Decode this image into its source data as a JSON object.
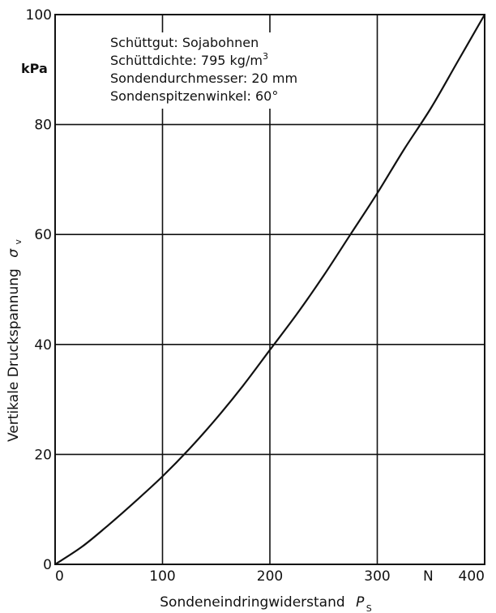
{
  "chart_data": {
    "type": "line",
    "title": "",
    "xlabel": "Sondeneindringwiderstand",
    "xlabel_symbol": "P",
    "xlabel_symbol_sub": "S",
    "x_unit": "N",
    "ylabel": "Vertikale Druckspannung",
    "ylabel_symbol": "σ",
    "ylabel_symbol_sub": "v",
    "y_unit": "kPa",
    "xlim": [
      0,
      400
    ],
    "ylim": [
      0,
      100
    ],
    "x_ticks": [
      {
        "value": 0,
        "label": "0"
      },
      {
        "value": 100,
        "label": "100"
      },
      {
        "value": 200,
        "label": "200"
      },
      {
        "value": 300,
        "label": "300"
      },
      {
        "value": 400,
        "label": "400"
      }
    ],
    "y_ticks": [
      {
        "value": 0,
        "label": "0"
      },
      {
        "value": 20,
        "label": "20"
      },
      {
        "value": 40,
        "label": "40"
      },
      {
        "value": 60,
        "label": "60"
      },
      {
        "value": 80,
        "label": "80"
      },
      {
        "value": 100,
        "label": "100"
      }
    ],
    "grid": true,
    "annotations": [
      {
        "text": "Schüttgut: Sojabohnen",
        "sup": ""
      },
      {
        "text": "Schüttdichte: 795 kg/m",
        "sup": "3"
      },
      {
        "text": "Sondendurchmesser: 20 mm",
        "sup": ""
      },
      {
        "text": "Sondenspitzenwinkel: 60°",
        "sup": ""
      }
    ],
    "series": [
      {
        "x": [
          0,
          25,
          50,
          75,
          100,
          125,
          150,
          175,
          200,
          225,
          250,
          275,
          300,
          325,
          350,
          375,
          400
        ],
        "y": [
          0,
          3.2,
          7.2,
          11.5,
          16,
          21,
          26.5,
          32.5,
          39,
          45.5,
          52.5,
          60,
          67.5,
          75.5,
          83,
          91.5,
          100
        ]
      }
    ]
  }
}
